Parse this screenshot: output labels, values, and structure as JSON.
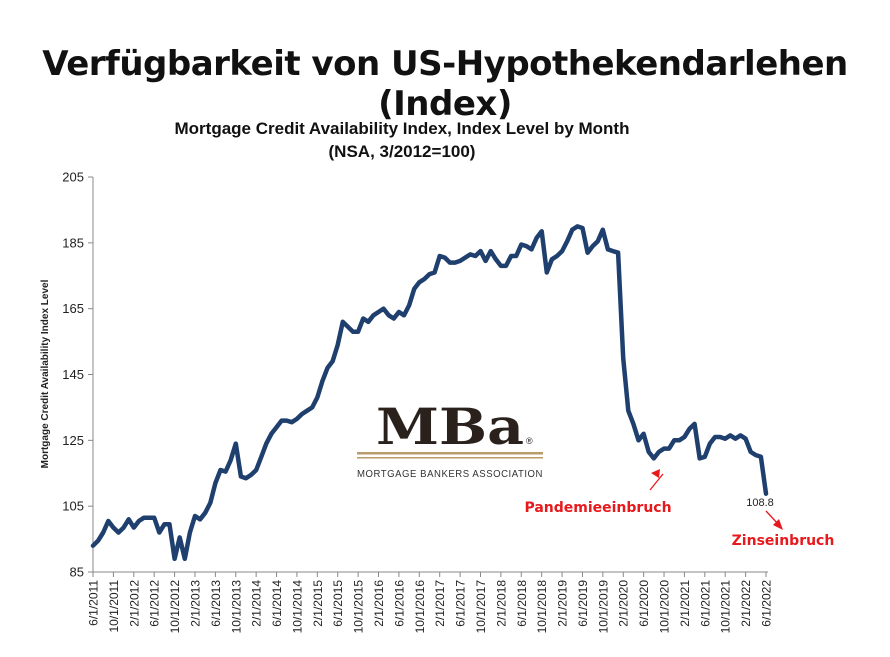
{
  "slide": {
    "title": "Verfügbarkeit von US-Hypothekendarlehen (Index)"
  },
  "logo": {
    "mark": "MBa",
    "registered": "®",
    "subtitle": "MORTGAGE BANKERS ASSOCIATION",
    "bar_color": "#b89c6a"
  },
  "chart_data": {
    "type": "line",
    "title": "Mortgage Credit Availability Index, Index Level by Month",
    "subtitle": "(NSA, 3/2012=100)",
    "ylabel": "Mortgage Credit Availability Index Level",
    "xlabel": "",
    "ylim": [
      85,
      205
    ],
    "yticks": [
      85,
      105,
      125,
      145,
      165,
      185,
      205
    ],
    "x_ticks": [
      "6/1/2011",
      "10/1/2011",
      "2/1/2012",
      "6/1/2012",
      "10/1/2012",
      "2/1/2013",
      "6/1/2013",
      "10/1/2013",
      "2/1/2014",
      "6/1/2014",
      "10/1/2014",
      "2/1/2015",
      "6/1/2015",
      "10/1/2015",
      "2/1/2016",
      "6/1/2016",
      "10/1/2016",
      "2/1/2017",
      "6/1/2017",
      "10/1/2017",
      "2/1/2018",
      "6/1/2018",
      "10/1/2018",
      "2/1/2019",
      "6/1/2019",
      "10/1/2019",
      "2/1/2020",
      "6/1/2020",
      "10/1/2020",
      "2/1/2021",
      "6/1/2021",
      "10/1/2021",
      "2/1/2022",
      "6/1/2022"
    ],
    "series_color": "#1f3f6e",
    "series": [
      {
        "values": [
          93,
          94.5,
          97,
          100.5,
          98.5,
          97,
          98.5,
          101,
          98.5,
          100.5,
          101.5,
          101.5,
          101.5,
          97,
          99.5,
          99.5,
          89,
          95.5,
          89,
          97,
          102,
          101,
          103,
          106,
          112,
          116,
          115.5,
          119,
          124,
          114,
          113.5,
          114.5,
          116,
          120,
          124,
          127,
          129,
          131,
          131,
          130.5,
          131.5,
          133,
          134,
          135,
          138,
          143,
          147,
          149,
          154,
          161,
          159.5,
          158,
          158,
          162,
          161,
          163,
          164,
          165,
          163,
          162,
          164,
          163,
          166,
          171,
          173,
          174,
          175.5,
          176,
          181,
          180.5,
          179,
          179,
          179.5,
          180.5,
          181.5,
          181,
          182.5,
          179.5,
          182.5,
          180,
          178,
          178,
          181,
          181,
          184.5,
          184,
          183,
          186.5,
          188.5,
          176,
          180,
          181,
          182.5,
          185.5,
          189,
          190,
          189.5,
          182,
          184,
          185.5,
          189,
          183,
          182.5,
          182,
          150,
          134,
          130,
          125,
          127,
          121.5,
          119.5,
          121.5,
          122.5,
          122.5,
          125,
          125,
          126,
          128.5,
          130,
          119.5,
          120,
          124,
          126,
          126,
          125.5,
          126.5,
          125.5,
          126.5,
          125.5,
          121.5,
          120.5,
          120,
          108.8
        ]
      }
    ],
    "annotations": [
      {
        "text": "Pandemieeinbruch",
        "x_index": 111
      },
      {
        "text": "Zinseinbruch",
        "x_index": 132
      }
    ],
    "data_label": "108.8",
    "grid": false,
    "legend": "none"
  }
}
